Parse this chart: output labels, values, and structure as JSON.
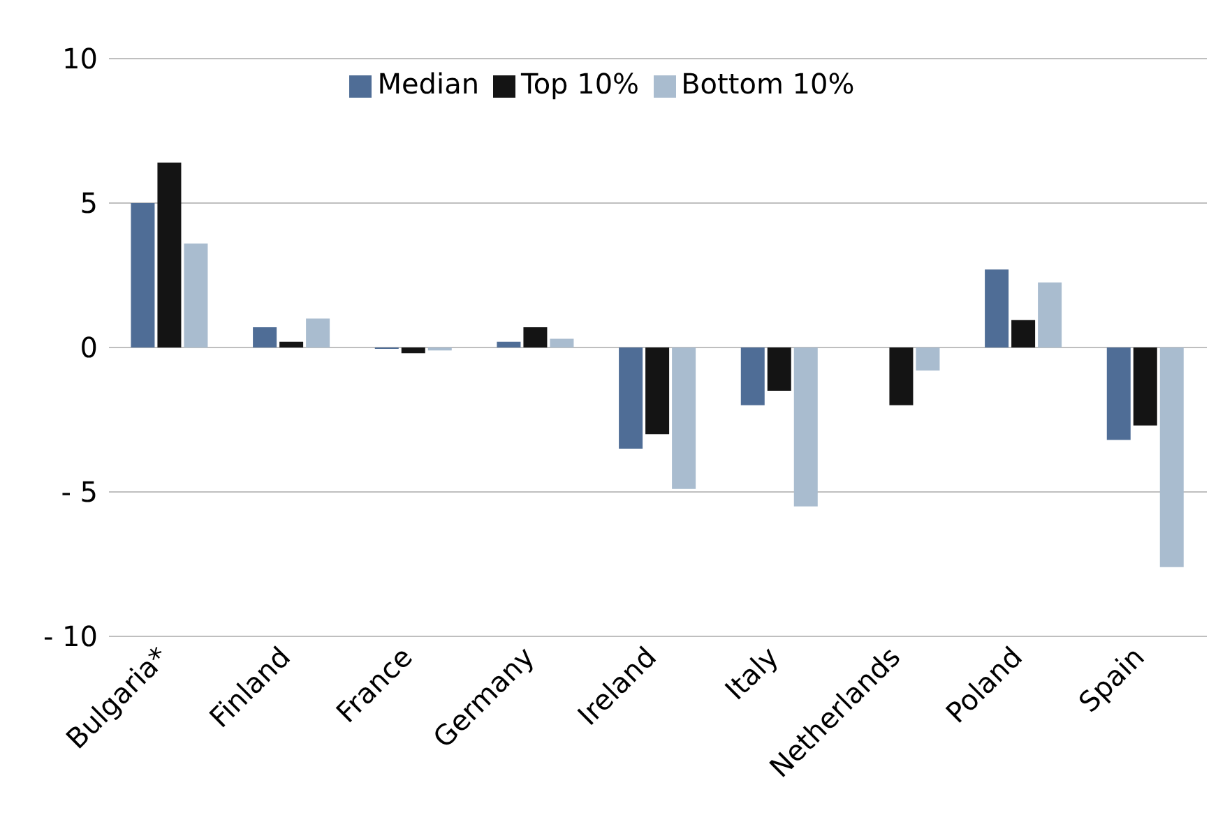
{
  "chart_data": {
    "type": "bar",
    "categories": [
      "Bulgaria*",
      "Finland",
      "France",
      "Germany",
      "Ireland",
      "Italy",
      "Netherlands",
      "Poland",
      "Spain"
    ],
    "series": [
      {
        "name": "Median",
        "color": "#4f6d96",
        "values": [
          5.0,
          0.7,
          -0.05,
          0.2,
          -3.5,
          -2.0,
          0,
          2.7,
          -3.2
        ]
      },
      {
        "name": "Top 10%",
        "color": "#141414",
        "values": [
          6.4,
          0.2,
          -0.2,
          0.7,
          -3.0,
          -1.5,
          -2.0,
          0.95,
          -2.7
        ]
      },
      {
        "name": "Bottom 10%",
        "color": "#a9bccf",
        "values": [
          3.6,
          1.0,
          -0.1,
          0.3,
          -4.9,
          -5.5,
          -0.8,
          2.25,
          -7.6
        ]
      }
    ],
    "ylim": [
      -10,
      10
    ],
    "yticks": [
      {
        "value": -10,
        "label": "- 10"
      },
      {
        "value": -5,
        "label": "- 5"
      },
      0,
      5,
      10
    ],
    "grid": "y",
    "legend": "top"
  }
}
